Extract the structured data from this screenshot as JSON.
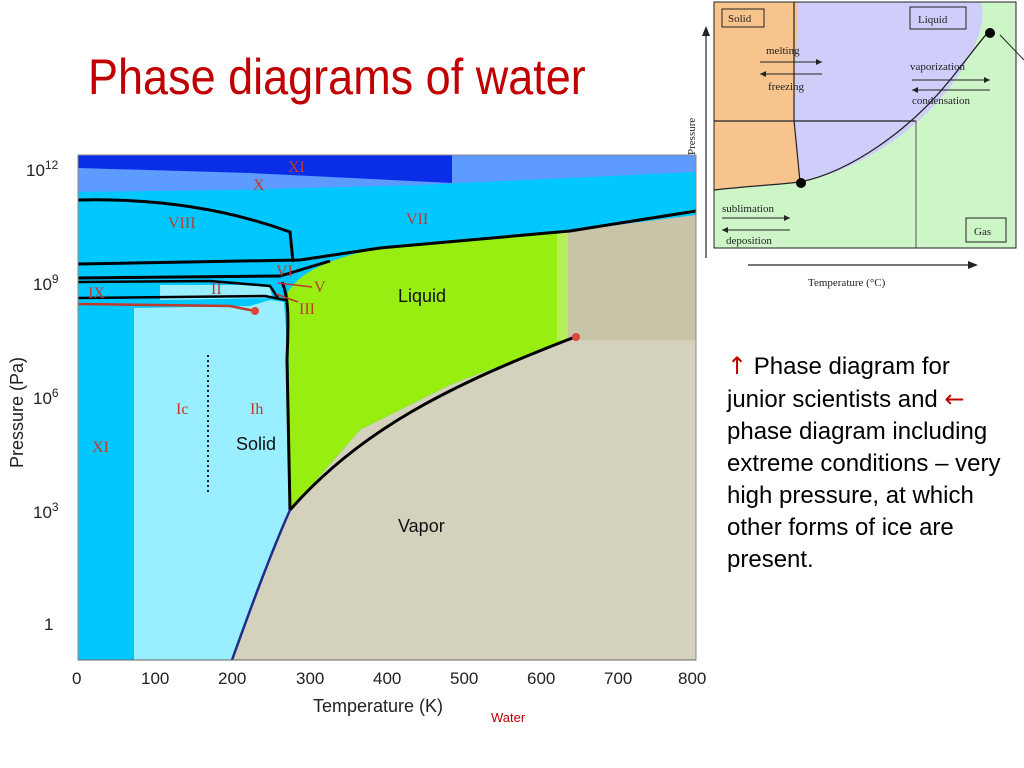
{
  "slide": {
    "title": "Phase diagrams of water",
    "caption": "Water"
  },
  "description": {
    "up_arrow": "↑",
    "line1": " Phase diagram for junior scientists and ",
    "left_arrow": "←",
    "line2": " phase diagram including extreme conditions – very high pressure, at which other forms of ice are present."
  },
  "main_diagram": {
    "y_axis_label": "Pressure (Pa)",
    "x_axis_label": "Temperature (K)",
    "x_ticks": [
      "0",
      "100",
      "200",
      "300",
      "400",
      "500",
      "600",
      "700",
      "800"
    ],
    "y_ticks": [
      {
        "base": "10",
        "exp": "12"
      },
      {
        "base": "10",
        "exp": "9"
      },
      {
        "base": "10",
        "exp": "6"
      },
      {
        "base": "10",
        "exp": "3"
      },
      {
        "base": "1",
        "exp": ""
      }
    ],
    "region_labels": {
      "liquid": "Liquid",
      "solid": "Solid",
      "vapor": "Vapor",
      "xi_top": "XI",
      "x": "X",
      "viii": "VIII",
      "vii": "VII",
      "vi": "VI",
      "v": "V",
      "iii": "III",
      "ii": "II",
      "ix": "IX",
      "xi_low": "XI",
      "ic": "Ic",
      "ih": "Ih"
    },
    "colors": {
      "liquid": "#99ee11",
      "vapor": "#d4d2bc",
      "ice_high": "#00c8ff",
      "ice_light": "#99eeff",
      "ice_x": "#5e9bff",
      "ice_xi": "#0a2ee8",
      "roman": "#c0392b"
    }
  },
  "inset_diagram": {
    "labels": {
      "solid": "Solid",
      "liquid": "Liquid",
      "gas": "Gas",
      "melting": "melting",
      "freezing": "freezing",
      "vaporization": "vaporization",
      "condensation": "condensation",
      "sublimation": "sublimation",
      "deposition": "deposition"
    },
    "y_axis_label": "Pressure",
    "x_axis_label": "Temperature (°C)",
    "colors": {
      "solid": "#f8c48e",
      "liquid": "#cfcdfa",
      "gas": "#cdf5c8"
    }
  }
}
